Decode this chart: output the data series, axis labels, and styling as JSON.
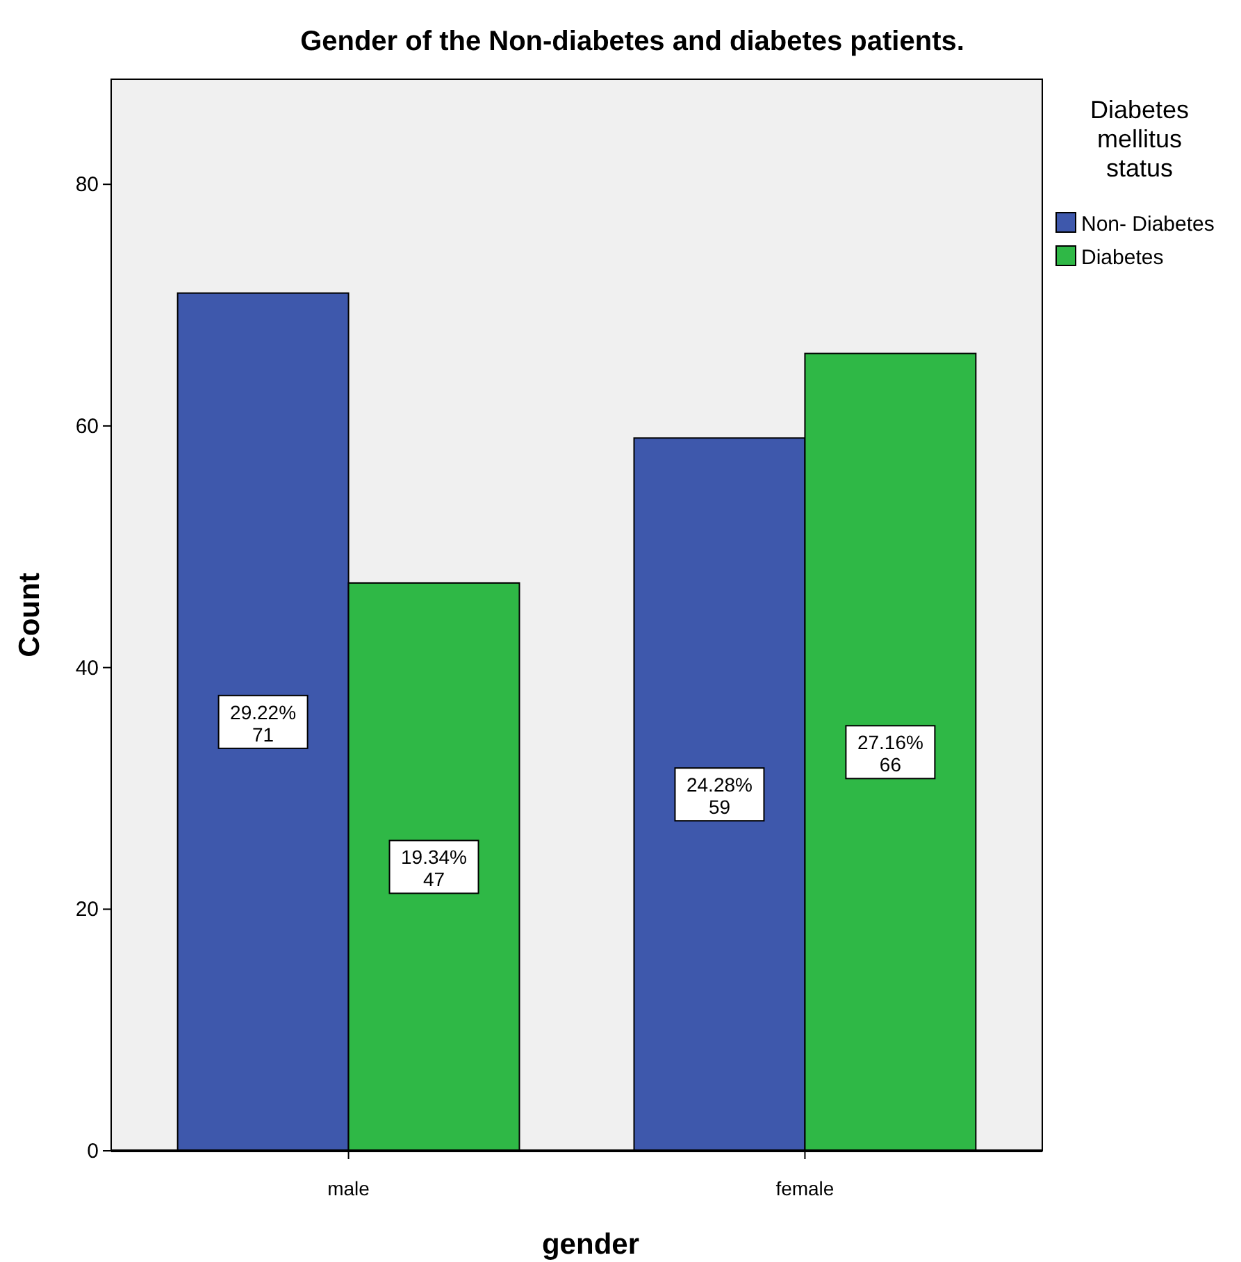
{
  "chart_data": {
    "type": "bar",
    "title": "Gender of the Non-diabetes and diabetes patients.",
    "xlabel": "gender",
    "ylabel": "Count",
    "legend_title": "Diabetes mellitus status",
    "categories": [
      "male",
      "female"
    ],
    "series": [
      {
        "name": "Non- Diabetes",
        "color": "#3e58ac",
        "values": [
          71,
          59
        ],
        "value_labels": [
          "29.22%\n71",
          "24.28%\n59"
        ]
      },
      {
        "name": "Diabetes",
        "color": "#2fb846",
        "values": [
          47,
          66
        ],
        "value_labels": [
          "19.34%\n47",
          "27.16%\n66"
        ]
      }
    ],
    "ylim": [
      0,
      88.7
    ],
    "yticks": [
      0,
      20,
      40,
      60,
      80
    ],
    "grid": false,
    "legend": "top right"
  }
}
